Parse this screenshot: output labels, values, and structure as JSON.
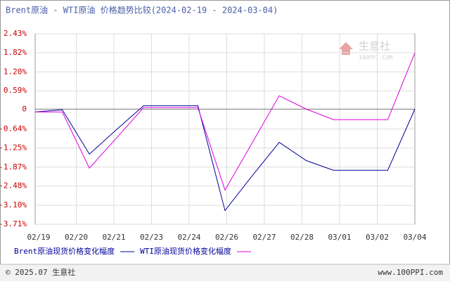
{
  "chart_data": {
    "type": "line",
    "title": "Brent原油 - WTI原油 价格趋势比较(2024-02-19 - 2024-03-04)",
    "x_labels": [
      "02/19",
      "02/20",
      "02/21",
      "02/23",
      "02/24",
      "02/26",
      "02/27",
      "02/28",
      "03/01",
      "03/02",
      "03/04"
    ],
    "series": [
      {
        "name": "Brent原油现货价格变化幅度",
        "color": "#000099",
        "values": [
          -0.09,
          -0.02,
          -1.45,
          -0.66,
          0.11,
          0.11,
          0.11,
          -3.27,
          -2.15,
          -1.07,
          -1.66,
          -1.97,
          -1.97,
          -1.97,
          0.0
        ]
      },
      {
        "name": "WTI原油现货价格变化幅度",
        "color": "#dd00dd",
        "values": [
          -0.09,
          -0.09,
          -1.9,
          -0.93,
          0.05,
          0.05,
          0.05,
          -2.61,
          -1.09,
          0.43,
          0.0,
          -0.34,
          -0.34,
          -0.34,
          1.81
        ]
      }
    ],
    "ylim": [
      -3.71,
      2.43
    ],
    "yticks": [
      {
        "value": 2.43,
        "label": "2.43%"
      },
      {
        "value": 1.82,
        "label": "1.82%"
      },
      {
        "value": 1.2,
        "label": "1.20%"
      },
      {
        "value": 0.59,
        "label": "0.59%"
      },
      0,
      {
        "value": -0.64,
        "label": "-0.64%"
      },
      {
        "value": -1.25,
        "label": "-1.25%"
      },
      {
        "value": -1.87,
        "label": "-1.87%"
      },
      {
        "value": -2.48,
        "label": "-2.48%"
      },
      {
        "value": -3.1,
        "label": "-3.10%"
      },
      {
        "value": -3.71,
        "label": "-3.71%"
      }
    ],
    "grid": true,
    "watermark": {
      "name": "生意社",
      "site": "100PPI.COM"
    },
    "footer": {
      "left": "© 2025.07 生意社",
      "right": "www.100PPI.com"
    }
  }
}
